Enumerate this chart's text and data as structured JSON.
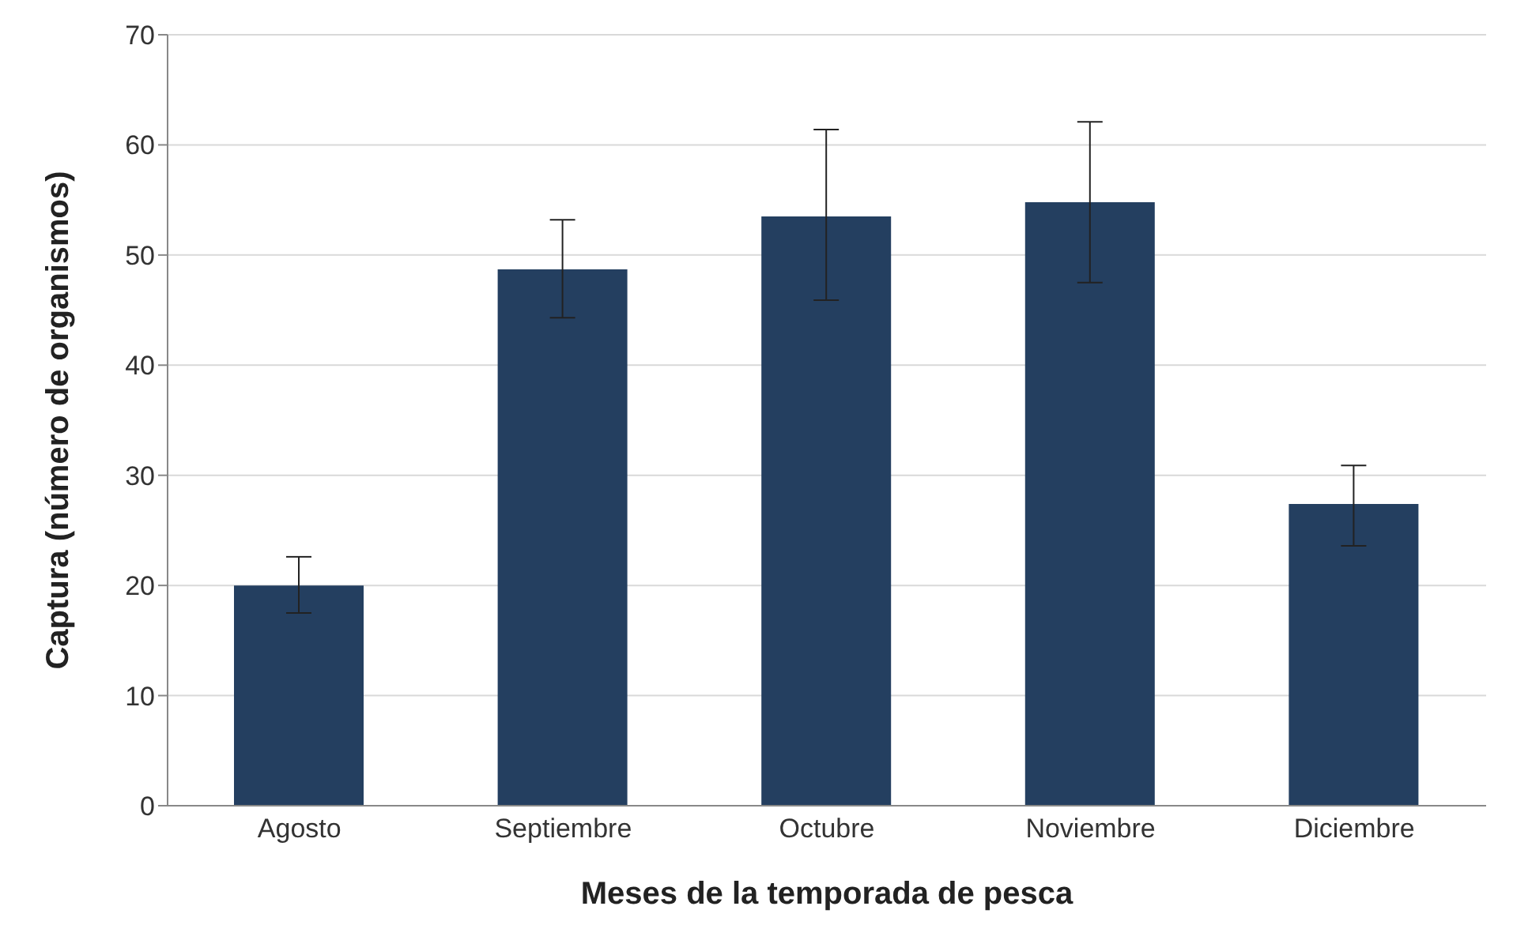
{
  "chart_data": {
    "type": "bar",
    "xlabel": "Meses de la temporada de pesca",
    "ylabel": "Captura (número de organismos)",
    "categories": [
      "Agosto",
      "Septiembre",
      "Octubre",
      "Noviembre",
      "Diciembre"
    ],
    "values": [
      20.0,
      48.7,
      53.5,
      54.8,
      27.4
    ],
    "errors": [
      [
        17.5,
        22.6
      ],
      [
        44.3,
        53.2
      ],
      [
        45.9,
        61.4
      ],
      [
        47.5,
        62.1
      ],
      [
        23.6,
        30.9
      ]
    ],
    "color": "#243f60",
    "ylim": [
      0,
      70
    ],
    "yticks": [
      0,
      10,
      20,
      30,
      40,
      50,
      60,
      70
    ],
    "grid": "y"
  }
}
